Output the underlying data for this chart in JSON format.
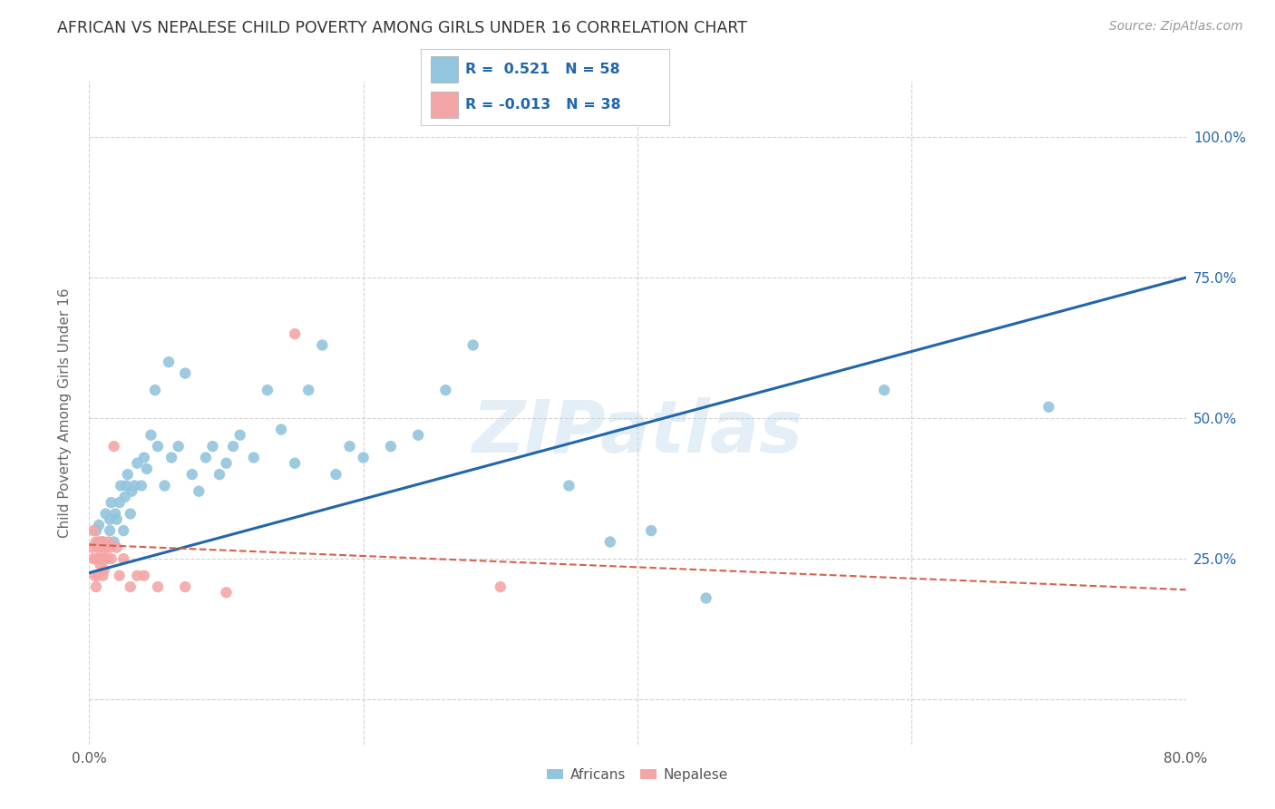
{
  "title": "AFRICAN VS NEPALESE CHILD POVERTY AMONG GIRLS UNDER 16 CORRELATION CHART",
  "source": "Source: ZipAtlas.com",
  "ylabel": "Child Poverty Among Girls Under 16",
  "xlim": [
    0.0,
    0.8
  ],
  "ylim": [
    -0.08,
    1.1
  ],
  "yticks": [
    0.0,
    0.25,
    0.5,
    0.75,
    1.0
  ],
  "xticks": [
    0.0,
    0.2,
    0.4,
    0.6,
    0.8
  ],
  "xtick_labels": [
    "0.0%",
    "",
    "",
    "",
    "80.0%"
  ],
  "ytick_right_labels": [
    "",
    "25.0%",
    "50.0%",
    "75.0%",
    "100.0%"
  ],
  "watermark": "ZIPatlas",
  "legend_african": "Africans",
  "legend_nepalese": "Nepalese",
  "african_R": "0.521",
  "african_N": "58",
  "nepalese_R": "-0.013",
  "nepalese_N": "38",
  "african_color": "#92c5de",
  "nepalese_color": "#f4a6a6",
  "african_line_color": "#2166ac",
  "nepalese_line_color": "#d6604d",
  "background_color": "#ffffff",
  "grid_color": "#cccccc",
  "africans_x": [
    0.005,
    0.007,
    0.01,
    0.012,
    0.015,
    0.015,
    0.016,
    0.018,
    0.019,
    0.02,
    0.022,
    0.023,
    0.025,
    0.026,
    0.027,
    0.028,
    0.03,
    0.031,
    0.033,
    0.035,
    0.038,
    0.04,
    0.042,
    0.045,
    0.048,
    0.05,
    0.055,
    0.058,
    0.06,
    0.065,
    0.07,
    0.075,
    0.08,
    0.085,
    0.09,
    0.095,
    0.1,
    0.105,
    0.11,
    0.12,
    0.13,
    0.14,
    0.15,
    0.16,
    0.17,
    0.18,
    0.19,
    0.2,
    0.22,
    0.24,
    0.26,
    0.28,
    0.35,
    0.38,
    0.41,
    0.45,
    0.58,
    0.7
  ],
  "africans_y": [
    0.3,
    0.31,
    0.28,
    0.33,
    0.3,
    0.32,
    0.35,
    0.28,
    0.33,
    0.32,
    0.35,
    0.38,
    0.3,
    0.36,
    0.38,
    0.4,
    0.33,
    0.37,
    0.38,
    0.42,
    0.38,
    0.43,
    0.41,
    0.47,
    0.55,
    0.45,
    0.38,
    0.6,
    0.43,
    0.45,
    0.58,
    0.4,
    0.37,
    0.43,
    0.45,
    0.4,
    0.42,
    0.45,
    0.47,
    0.43,
    0.55,
    0.48,
    0.42,
    0.55,
    0.63,
    0.4,
    0.45,
    0.43,
    0.45,
    0.47,
    0.55,
    0.63,
    0.38,
    0.28,
    0.3,
    0.18,
    0.55,
    0.52
  ],
  "nepalese_x": [
    0.002,
    0.003,
    0.003,
    0.004,
    0.005,
    0.005,
    0.005,
    0.006,
    0.006,
    0.007,
    0.007,
    0.008,
    0.008,
    0.009,
    0.009,
    0.01,
    0.01,
    0.01,
    0.011,
    0.011,
    0.012,
    0.012,
    0.013,
    0.014,
    0.015,
    0.016,
    0.018,
    0.02,
    0.022,
    0.025,
    0.03,
    0.035,
    0.04,
    0.05,
    0.07,
    0.1,
    0.15,
    0.3
  ],
  "nepalese_y": [
    0.27,
    0.25,
    0.3,
    0.22,
    0.2,
    0.25,
    0.28,
    0.22,
    0.27,
    0.25,
    0.28,
    0.24,
    0.27,
    0.25,
    0.28,
    0.22,
    0.25,
    0.28,
    0.23,
    0.27,
    0.25,
    0.27,
    0.25,
    0.28,
    0.27,
    0.25,
    0.45,
    0.27,
    0.22,
    0.25,
    0.2,
    0.22,
    0.22,
    0.2,
    0.2,
    0.19,
    0.65,
    0.2
  ],
  "african_trendline_x": [
    0.0,
    0.8
  ],
  "african_trendline_y": [
    0.225,
    0.75
  ],
  "nepalese_trendline_x": [
    0.0,
    0.8
  ],
  "nepalese_trendline_y": [
    0.275,
    0.195
  ]
}
